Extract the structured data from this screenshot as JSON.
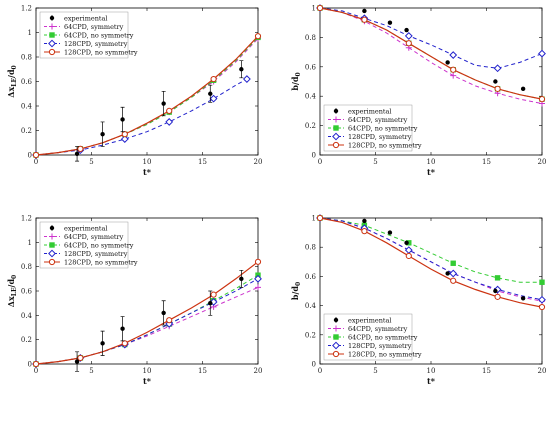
{
  "legend_labels": [
    "experimental",
    "64CPD, symmetry",
    "64CPD, no symmetry",
    "128CPD, symmetry",
    "128CPD, no symmetry"
  ],
  "colors": {
    "experimental": "#000000",
    "64sym": "#cc33cc",
    "64nosym": "#33cc33",
    "128sym": "#2222cc",
    "128nosym": "#cc3311"
  },
  "chart_data": [
    {
      "type": "line",
      "panel": "top-left",
      "xlabel": "t*",
      "ylabel": "Δx_LE/d_0",
      "xlim": [
        0,
        20
      ],
      "ylim": [
        0,
        1.2
      ],
      "xticks": [
        "0",
        "5",
        "10",
        "15",
        "20"
      ],
      "yticks": [
        "0",
        "0.2",
        "0.4",
        "0.6",
        "0.8",
        "1",
        "1.2"
      ],
      "legend": "top-left",
      "experimental": {
        "x": [
          3.7,
          6.0,
          7.8,
          11.5,
          15.7,
          18.5
        ],
        "y": [
          0.01,
          0.17,
          0.29,
          0.42,
          0.5,
          0.7
        ],
        "err": [
          0.06,
          0.1,
          0.1,
          0.1,
          0.07,
          0.07
        ]
      },
      "series": [
        {
          "name": "64CPD, symmetry",
          "x": [
            0,
            2,
            4,
            6,
            8,
            10,
            12,
            14,
            16,
            18,
            20
          ],
          "y": [
            0,
            0.02,
            0.05,
            0.1,
            0.17,
            0.25,
            0.35,
            0.47,
            0.6,
            0.76,
            0.95
          ]
        },
        {
          "name": "64CPD, no symmetry",
          "x": [
            0,
            2,
            4,
            6,
            8,
            10,
            12,
            14,
            16,
            18,
            20
          ],
          "y": [
            0,
            0.02,
            0.05,
            0.1,
            0.17,
            0.25,
            0.35,
            0.47,
            0.61,
            0.77,
            0.96
          ]
        },
        {
          "name": "128CPD, symmetry",
          "x": [
            0,
            2,
            4,
            6,
            8,
            10,
            12,
            14,
            16,
            18,
            19
          ],
          "y": [
            0,
            0.02,
            0.04,
            0.08,
            0.13,
            0.19,
            0.27,
            0.36,
            0.46,
            0.57,
            0.62
          ]
        },
        {
          "name": "128CPD, no symmetry",
          "x": [
            0,
            2,
            4,
            6,
            8,
            10,
            12,
            14,
            16,
            18,
            20
          ],
          "y": [
            0,
            0.02,
            0.05,
            0.1,
            0.17,
            0.26,
            0.36,
            0.48,
            0.62,
            0.78,
            0.97
          ]
        }
      ]
    },
    {
      "type": "line",
      "panel": "top-right",
      "xlabel": "t*",
      "ylabel": "b/d_0",
      "xlim": [
        0,
        20
      ],
      "ylim": [
        0,
        1
      ],
      "xticks": [
        "0",
        "5",
        "10",
        "15",
        "20"
      ],
      "yticks": [
        "0",
        "0.2",
        "0.4",
        "0.6",
        "0.8",
        "1"
      ],
      "legend": "bottom-left",
      "experimental": {
        "x": [
          4,
          6.3,
          7.8,
          11.5,
          15.8,
          18.3
        ],
        "y": [
          0.98,
          0.9,
          0.85,
          0.63,
          0.5,
          0.45
        ],
        "err": [
          0,
          0,
          0,
          0,
          0,
          0
        ]
      },
      "series": [
        {
          "name": "64CPD, symmetry",
          "x": [
            0,
            2,
            4,
            6,
            8,
            10,
            12,
            14,
            16,
            18,
            20
          ],
          "y": [
            1,
            0.97,
            0.91,
            0.83,
            0.73,
            0.63,
            0.54,
            0.47,
            0.42,
            0.38,
            0.35
          ]
        },
        {
          "name": "64CPD, no symmetry",
          "x": [
            0,
            2,
            4,
            6,
            8,
            10,
            12,
            14,
            16,
            18,
            20
          ],
          "y": [
            1,
            0.97,
            0.92,
            0.85,
            0.76,
            0.67,
            0.58,
            0.51,
            0.45,
            0.41,
            0.38
          ]
        },
        {
          "name": "128CPD, symmetry",
          "x": [
            0,
            2,
            4,
            6,
            8,
            10,
            12,
            14,
            16,
            18,
            20
          ],
          "y": [
            1,
            0.98,
            0.93,
            0.88,
            0.81,
            0.75,
            0.68,
            0.61,
            0.59,
            0.63,
            0.69
          ]
        },
        {
          "name": "128CPD, no symmetry",
          "x": [
            0,
            2,
            4,
            6,
            8,
            10,
            12,
            14,
            16,
            18,
            20
          ],
          "y": [
            1,
            0.97,
            0.92,
            0.85,
            0.76,
            0.67,
            0.58,
            0.51,
            0.45,
            0.41,
            0.38
          ]
        }
      ]
    },
    {
      "type": "line",
      "panel": "bottom-left",
      "xlabel": "t*",
      "ylabel": "Δx_LE/d_0",
      "xlim": [
        0,
        20
      ],
      "ylim": [
        0,
        1.2
      ],
      "xticks": [
        "0",
        "5",
        "10",
        "15",
        "20"
      ],
      "yticks": [
        "0",
        "0.2",
        "0.4",
        "0.6",
        "0.8",
        "1",
        "1.2"
      ],
      "legend": "top-left",
      "experimental": {
        "x": [
          3.7,
          6.0,
          7.8,
          11.5,
          15.7,
          18.5
        ],
        "y": [
          0.02,
          0.17,
          0.29,
          0.42,
          0.5,
          0.7
        ],
        "err": [
          0.08,
          0.1,
          0.1,
          0.1,
          0.1,
          0.07
        ]
      },
      "series": [
        {
          "name": "64CPD, symmetry",
          "x": [
            0,
            2,
            4,
            6,
            8,
            10,
            12,
            14,
            16,
            18,
            20
          ],
          "y": [
            0,
            0.02,
            0.05,
            0.1,
            0.16,
            0.23,
            0.31,
            0.39,
            0.47,
            0.55,
            0.63
          ]
        },
        {
          "name": "64CPD, no symmetry",
          "x": [
            0,
            2,
            4,
            6,
            8,
            10,
            12,
            14,
            16,
            18,
            20
          ],
          "y": [
            0,
            0.02,
            0.05,
            0.1,
            0.16,
            0.24,
            0.33,
            0.42,
            0.52,
            0.62,
            0.73
          ]
        },
        {
          "name": "128CPD, symmetry",
          "x": [
            0,
            2,
            4,
            6,
            8,
            10,
            12,
            14,
            16,
            18,
            20
          ],
          "y": [
            0,
            0.02,
            0.05,
            0.1,
            0.16,
            0.24,
            0.33,
            0.42,
            0.51,
            0.6,
            0.7
          ]
        },
        {
          "name": "128CPD, no symmetry",
          "x": [
            0,
            2,
            4,
            6,
            8,
            10,
            12,
            14,
            16,
            18,
            20
          ],
          "y": [
            0,
            0.02,
            0.05,
            0.1,
            0.17,
            0.26,
            0.36,
            0.46,
            0.57,
            0.7,
            0.84
          ]
        }
      ]
    },
    {
      "type": "line",
      "panel": "bottom-right",
      "xlabel": "t*",
      "ylabel": "b/d_0",
      "xlim": [
        0,
        20
      ],
      "ylim": [
        0,
        1
      ],
      "xticks": [
        "0",
        "5",
        "10",
        "15",
        "20"
      ],
      "yticks": [
        "0",
        "0.2",
        "0.4",
        "0.6",
        "0.8",
        "1"
      ],
      "legend": "bottom-left",
      "experimental": {
        "x": [
          4,
          6.3,
          7.8,
          11.5,
          15.8,
          18.3
        ],
        "y": [
          0.98,
          0.9,
          0.83,
          0.62,
          0.5,
          0.45
        ],
        "err": [
          0,
          0,
          0,
          0,
          0,
          0
        ]
      },
      "series": [
        {
          "name": "64CPD, symmetry",
          "x": [
            0,
            2,
            4,
            6,
            8,
            10,
            12,
            14,
            16,
            18,
            20
          ],
          "y": [
            1,
            0.98,
            0.93,
            0.86,
            0.78,
            0.7,
            0.62,
            0.56,
            0.5,
            0.46,
            0.43
          ]
        },
        {
          "name": "64CPD, no symmetry",
          "x": [
            0,
            2,
            4,
            6,
            8,
            10,
            12,
            14,
            16,
            18,
            20
          ],
          "y": [
            1,
            0.98,
            0.95,
            0.89,
            0.83,
            0.76,
            0.69,
            0.63,
            0.59,
            0.56,
            0.56
          ]
        },
        {
          "name": "128CPD, symmetry",
          "x": [
            0,
            2,
            4,
            6,
            8,
            10,
            12,
            14,
            16,
            18,
            20
          ],
          "y": [
            1,
            0.98,
            0.93,
            0.86,
            0.78,
            0.7,
            0.62,
            0.56,
            0.51,
            0.47,
            0.44
          ]
        },
        {
          "name": "128CPD, no symmetry",
          "x": [
            0,
            2,
            4,
            6,
            8,
            10,
            12,
            14,
            16,
            18,
            20
          ],
          "y": [
            1,
            0.97,
            0.91,
            0.83,
            0.74,
            0.65,
            0.57,
            0.51,
            0.46,
            0.42,
            0.39
          ]
        }
      ]
    }
  ]
}
